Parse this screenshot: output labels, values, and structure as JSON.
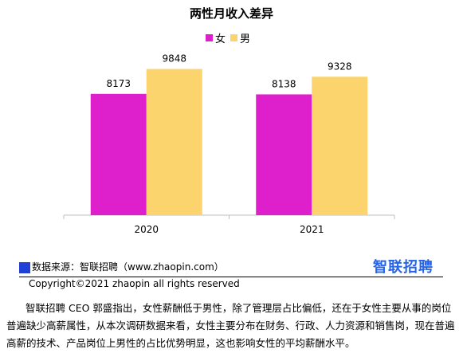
{
  "chart_data": {
    "type": "bar",
    "title": "两性月收入差异",
    "categories": [
      "2020",
      "2021"
    ],
    "series": [
      {
        "name": "女",
        "values": [
          8173,
          8138
        ],
        "color": "#dd1fcc"
      },
      {
        "name": "男",
        "values": [
          9848,
          9328
        ],
        "color": "#fbd46d"
      }
    ],
    "ylim": [
      0,
      10900
    ],
    "grid": false,
    "legend": "top-center",
    "xlabel": "",
    "ylabel": ""
  },
  "footer": {
    "source": "数据来源：智联招聘（www.zhaopin.com）",
    "brand": "智联招聘",
    "copyright": "Copyright©2021 zhaopin all rights reserved"
  },
  "body_text": "智联招聘 CEO 郭盛指出，女性薪酬低于男性，除了管理层占比偏低，还在于女性主要从事的岗位普遍缺少高薪属性，从本次调研数据来看，女性主要分布在财务、行政、人力资源和销售岗，现在普遍高薪的技术、产品岗位上男性的占比优势明显，这也影响女性的平均薪酬水平。"
}
